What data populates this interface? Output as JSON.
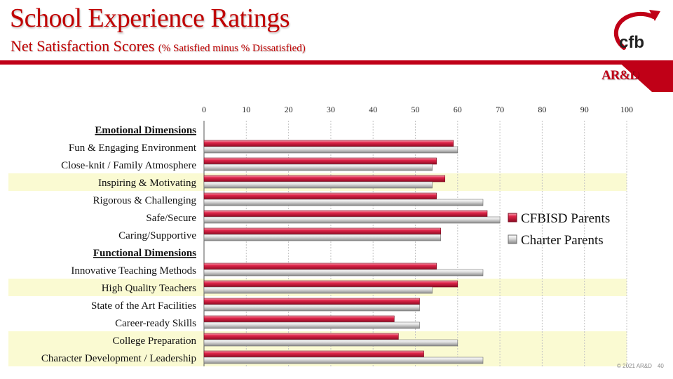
{
  "slide": {
    "title": "School Experience Ratings",
    "subtitle_main": "Net Satisfaction Scores",
    "subtitle_note": "(% Satisfied minus % Dissatisfied)",
    "brand_label": "AR&D",
    "logo_text": "cfb",
    "copyright": "© 2021 AR&D",
    "page_number": "40"
  },
  "colors": {
    "accent": "#c00017",
    "cfbisd": "#d81e3e",
    "charter": "#c8c8c8",
    "highlight_row": "#fafad2"
  },
  "chart_data": {
    "type": "bar",
    "orientation": "horizontal",
    "xlim": [
      0,
      100
    ],
    "xticks": [
      "0",
      "10",
      "20",
      "30",
      "40",
      "50",
      "60",
      "70",
      "80",
      "90",
      "100"
    ],
    "legend_position": "right",
    "grid": true,
    "rows": [
      {
        "label": "Emotional Dimensions",
        "header": true
      },
      {
        "label": "Fun & Engaging Environment",
        "cfbisd": 59,
        "charter": 60,
        "highlight": false
      },
      {
        "label": "Close-knit / Family Atmosphere",
        "cfbisd": 55,
        "charter": 54,
        "highlight": false
      },
      {
        "label": "Inspiring & Motivating",
        "cfbisd": 57,
        "charter": 54,
        "highlight": true
      },
      {
        "label": "Rigorous & Challenging",
        "cfbisd": 55,
        "charter": 66,
        "highlight": false
      },
      {
        "label": "Safe/Secure",
        "cfbisd": 67,
        "charter": 70,
        "highlight": false
      },
      {
        "label": "Caring/Supportive",
        "cfbisd": 56,
        "charter": 56,
        "highlight": false
      },
      {
        "label": "Functional Dimensions",
        "header": true
      },
      {
        "label": "Innovative Teaching Methods",
        "cfbisd": 55,
        "charter": 66,
        "highlight": false
      },
      {
        "label": "High Quality Teachers",
        "cfbisd": 60,
        "charter": 54,
        "highlight": true
      },
      {
        "label": "State of the Art Facilities",
        "cfbisd": 51,
        "charter": 51,
        "highlight": false
      },
      {
        "label": "Career-ready Skills",
        "cfbisd": 45,
        "charter": 51,
        "highlight": false
      },
      {
        "label": "College Preparation",
        "cfbisd": 46,
        "charter": 60,
        "highlight": true
      },
      {
        "label": "Character Development / Leadership",
        "cfbisd": 52,
        "charter": 66,
        "highlight": true
      }
    ],
    "series": [
      {
        "key": "cfbisd",
        "name": "CFBISD Parents"
      },
      {
        "key": "charter",
        "name": "Charter Parents"
      }
    ]
  }
}
